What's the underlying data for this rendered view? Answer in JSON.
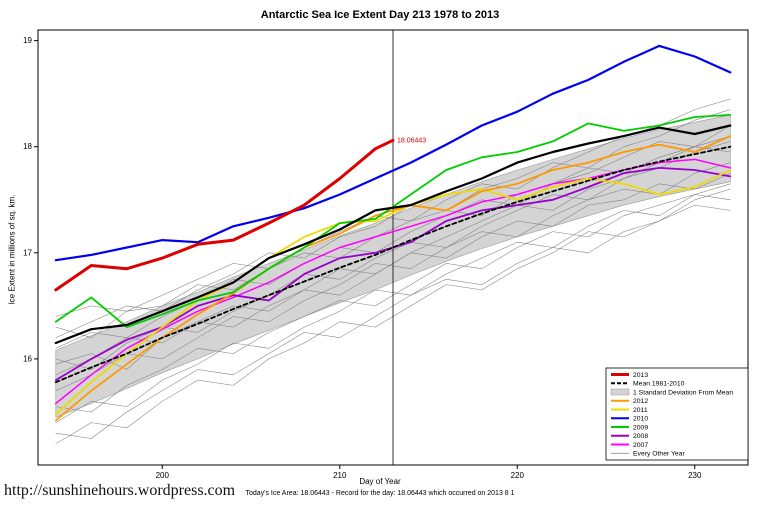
{
  "title": "Antarctic Sea Ice Extent Day 213 1978 to 2013",
  "footer": {
    "url": "http://sunshinehours.wordpress.com",
    "status": "Today's Ice Area: 18.06443  - Record for the day: 18.06443 which occurred on 2013 8 1"
  },
  "chart_data": {
    "type": "line",
    "title": "Antarctic Sea Ice Extent Day 213 1978 to 2013",
    "xlabel": "Day of Year",
    "ylabel": "Ice Extent in millions of sq. km.",
    "xlim": [
      193,
      233
    ],
    "ylim": [
      15.0,
      19.1
    ],
    "xticks": [
      200,
      210,
      220,
      230
    ],
    "yticks": [
      16,
      17,
      18,
      19
    ],
    "grid": false,
    "legend_position": "bottom-right",
    "marker_day": 213,
    "annotation": {
      "text": "18.06443",
      "x": 213,
      "y": 18.06,
      "color": "#dd0000"
    },
    "x": [
      194,
      196,
      198,
      200,
      202,
      204,
      206,
      208,
      210,
      212,
      214,
      216,
      218,
      220,
      222,
      224,
      226,
      228,
      230,
      232
    ],
    "band": {
      "label": "1 Standard Deviation From Mean",
      "fill": "#d4d4d4",
      "upper": [
        16.08,
        16.22,
        16.35,
        16.5,
        16.63,
        16.77,
        16.9,
        17.03,
        17.16,
        17.28,
        17.42,
        17.55,
        17.67,
        17.78,
        17.88,
        17.98,
        18.08,
        18.16,
        18.23,
        18.3
      ],
      "lower": [
        15.45,
        15.58,
        15.72,
        15.87,
        16.0,
        16.14,
        16.27,
        16.4,
        16.53,
        16.65,
        16.79,
        16.92,
        17.04,
        17.15,
        17.25,
        17.35,
        17.45,
        17.53,
        17.6,
        17.67
      ]
    },
    "series": [
      {
        "name": "2007",
        "color": "#ff00ff",
        "width": 1.5,
        "y": [
          15.58,
          15.85,
          16.1,
          16.28,
          16.45,
          16.58,
          16.72,
          16.9,
          17.05,
          17.15,
          17.25,
          17.35,
          17.48,
          17.55,
          17.65,
          17.7,
          17.78,
          17.85,
          17.88,
          17.8
        ]
      },
      {
        "name": "2008",
        "color": "#9900cc",
        "width": 1.8,
        "y": [
          15.8,
          16.0,
          16.18,
          16.3,
          16.5,
          16.6,
          16.55,
          16.8,
          16.95,
          17.0,
          17.1,
          17.3,
          17.4,
          17.45,
          17.5,
          17.62,
          17.75,
          17.8,
          17.78,
          17.72
        ]
      },
      {
        "name": "2011",
        "color": "#eeda00",
        "width": 1.8,
        "y": [
          15.48,
          15.78,
          16.05,
          16.3,
          16.55,
          16.72,
          16.95,
          17.15,
          17.28,
          17.3,
          17.45,
          17.55,
          17.6,
          17.5,
          17.62,
          17.7,
          17.65,
          17.55,
          17.62,
          17.78
        ]
      },
      {
        "name": "2012",
        "color": "#ff9900",
        "width": 1.8,
        "y": [
          15.42,
          15.7,
          15.95,
          16.2,
          16.42,
          16.62,
          16.85,
          17.05,
          17.18,
          17.35,
          17.45,
          17.4,
          17.58,
          17.65,
          17.78,
          17.85,
          17.95,
          18.02,
          17.95,
          18.1
        ]
      },
      {
        "name": "2009",
        "color": "#00cc00",
        "width": 1.8,
        "y": [
          16.35,
          16.58,
          16.3,
          16.42,
          16.55,
          16.63,
          16.85,
          17.05,
          17.28,
          17.32,
          17.55,
          17.78,
          17.9,
          17.95,
          18.05,
          18.22,
          18.15,
          18.2,
          18.28,
          18.3
        ]
      },
      {
        "name": "Mean 1981-2010",
        "color": "#000000",
        "width": 1.8,
        "dash": "4,3",
        "y": [
          15.78,
          15.92,
          16.05,
          16.2,
          16.33,
          16.47,
          16.6,
          16.73,
          16.86,
          16.98,
          17.12,
          17.25,
          17.37,
          17.48,
          17.58,
          17.68,
          17.78,
          17.86,
          17.93,
          18.0
        ]
      },
      {
        "name": "unlabeled-black",
        "color": "#000000",
        "width": 2.2,
        "y": [
          16.15,
          16.28,
          16.32,
          16.45,
          16.58,
          16.72,
          16.95,
          17.08,
          17.22,
          17.4,
          17.45,
          17.58,
          17.7,
          17.85,
          17.95,
          18.03,
          18.1,
          18.18,
          18.12,
          18.2
        ]
      },
      {
        "name": "2010",
        "color": "#0000ee",
        "width": 2.2,
        "y": [
          16.93,
          16.98,
          17.05,
          17.12,
          17.1,
          17.25,
          17.33,
          17.42,
          17.55,
          17.7,
          17.85,
          18.02,
          18.2,
          18.33,
          18.5,
          18.63,
          18.8,
          18.95,
          18.85,
          18.7
        ]
      },
      {
        "name": "2013",
        "color": "#dd0000",
        "width": 3,
        "x": [
          194,
          196,
          198,
          200,
          202,
          204,
          206,
          208,
          210,
          212,
          213
        ],
        "y": [
          16.65,
          16.88,
          16.85,
          16.95,
          17.08,
          17.12,
          17.28,
          17.45,
          17.7,
          17.98,
          18.06
        ]
      }
    ],
    "background": {
      "label": "Every Other Year",
      "color": "#808080",
      "width": 0.55,
      "lines": [
        [
          15.95,
          16.05,
          15.9,
          16.2,
          16.35,
          16.3,
          16.5,
          16.65,
          16.6,
          16.8,
          17.0,
          16.95,
          17.15,
          17.3,
          17.25,
          17.45,
          17.5,
          17.65,
          17.6,
          17.75
        ],
        [
          15.55,
          15.5,
          15.75,
          15.9,
          16.1,
          16.05,
          16.25,
          16.4,
          16.55,
          16.5,
          16.7,
          16.9,
          16.85,
          17.05,
          17.2,
          17.15,
          17.35,
          17.45,
          17.55,
          17.5
        ],
        [
          16.3,
          16.2,
          16.45,
          16.5,
          16.7,
          16.65,
          16.85,
          17.0,
          16.95,
          17.15,
          17.3,
          17.4,
          17.35,
          17.55,
          17.65,
          17.8,
          17.75,
          17.9,
          18.0,
          18.1
        ],
        [
          15.2,
          15.4,
          15.35,
          15.6,
          15.8,
          15.75,
          16.0,
          16.15,
          16.35,
          16.3,
          16.5,
          16.7,
          16.65,
          16.85,
          17.0,
          17.2,
          17.15,
          17.3,
          17.45,
          17.4
        ],
        [
          16.1,
          16.25,
          16.2,
          16.4,
          16.55,
          16.75,
          16.7,
          16.9,
          17.05,
          17.0,
          17.2,
          17.35,
          17.5,
          17.45,
          17.65,
          17.75,
          17.9,
          18.05,
          18.0,
          18.2
        ],
        [
          15.7,
          15.85,
          16.05,
          16.0,
          16.2,
          16.4,
          16.35,
          16.55,
          16.7,
          16.9,
          16.85,
          17.05,
          17.2,
          17.15,
          17.35,
          17.5,
          17.6,
          17.55,
          17.75,
          17.85
        ],
        [
          16.2,
          16.35,
          16.5,
          16.45,
          16.65,
          16.8,
          17.0,
          16.95,
          17.15,
          17.25,
          17.45,
          17.4,
          17.6,
          17.7,
          17.85,
          17.8,
          18.0,
          18.1,
          18.25,
          18.35
        ],
        [
          15.4,
          15.6,
          15.55,
          15.8,
          15.95,
          16.15,
          16.1,
          16.3,
          16.45,
          16.65,
          16.6,
          16.8,
          16.95,
          17.1,
          17.05,
          17.25,
          17.4,
          17.35,
          17.55,
          17.65
        ],
        [
          16.0,
          15.9,
          16.15,
          16.3,
          16.25,
          16.45,
          16.6,
          16.8,
          16.75,
          16.95,
          17.1,
          17.05,
          17.25,
          17.4,
          17.55,
          17.5,
          17.7,
          17.8,
          17.95,
          18.05
        ],
        [
          15.85,
          16.0,
          16.2,
          16.15,
          16.35,
          16.5,
          16.45,
          16.65,
          16.85,
          16.8,
          17.0,
          17.15,
          17.3,
          17.45,
          17.4,
          17.6,
          17.7,
          17.85,
          18.0,
          17.95
        ],
        [
          16.4,
          16.5,
          16.45,
          16.6,
          16.75,
          16.9,
          16.85,
          17.05,
          17.2,
          17.35,
          17.3,
          17.5,
          17.65,
          17.6,
          17.8,
          17.95,
          18.1,
          18.2,
          18.35,
          18.45
        ],
        [
          15.3,
          15.25,
          15.5,
          15.7,
          15.9,
          15.85,
          16.05,
          16.25,
          16.2,
          16.4,
          16.6,
          16.75,
          16.7,
          16.9,
          17.05,
          17.0,
          17.2,
          17.3,
          17.5,
          17.6
        ]
      ]
    }
  },
  "legend": {
    "items": [
      {
        "label": "2013",
        "color": "#dd0000",
        "type": "line",
        "width": 3
      },
      {
        "label": "Mean 1981-2010",
        "color": "#000000",
        "type": "dashed",
        "width": 2
      },
      {
        "label": "1 Standard Deviation From Mean",
        "color": "#d4d4d4",
        "type": "fill",
        "width": 5
      },
      {
        "label": "2012",
        "color": "#ff9900",
        "type": "line",
        "width": 2
      },
      {
        "label": "2011",
        "color": "#eeda00",
        "type": "line",
        "width": 2
      },
      {
        "label": "2010",
        "color": "#0000ee",
        "type": "line",
        "width": 2
      },
      {
        "label": "2009",
        "color": "#00cc00",
        "type": "line",
        "width": 2
      },
      {
        "label": "2008",
        "color": "#9900cc",
        "type": "line",
        "width": 2
      },
      {
        "label": "2007",
        "color": "#ff00ff",
        "type": "line",
        "width": 2
      },
      {
        "label": "Every Other Year",
        "color": "#808080",
        "type": "line",
        "width": 0.8
      }
    ]
  }
}
